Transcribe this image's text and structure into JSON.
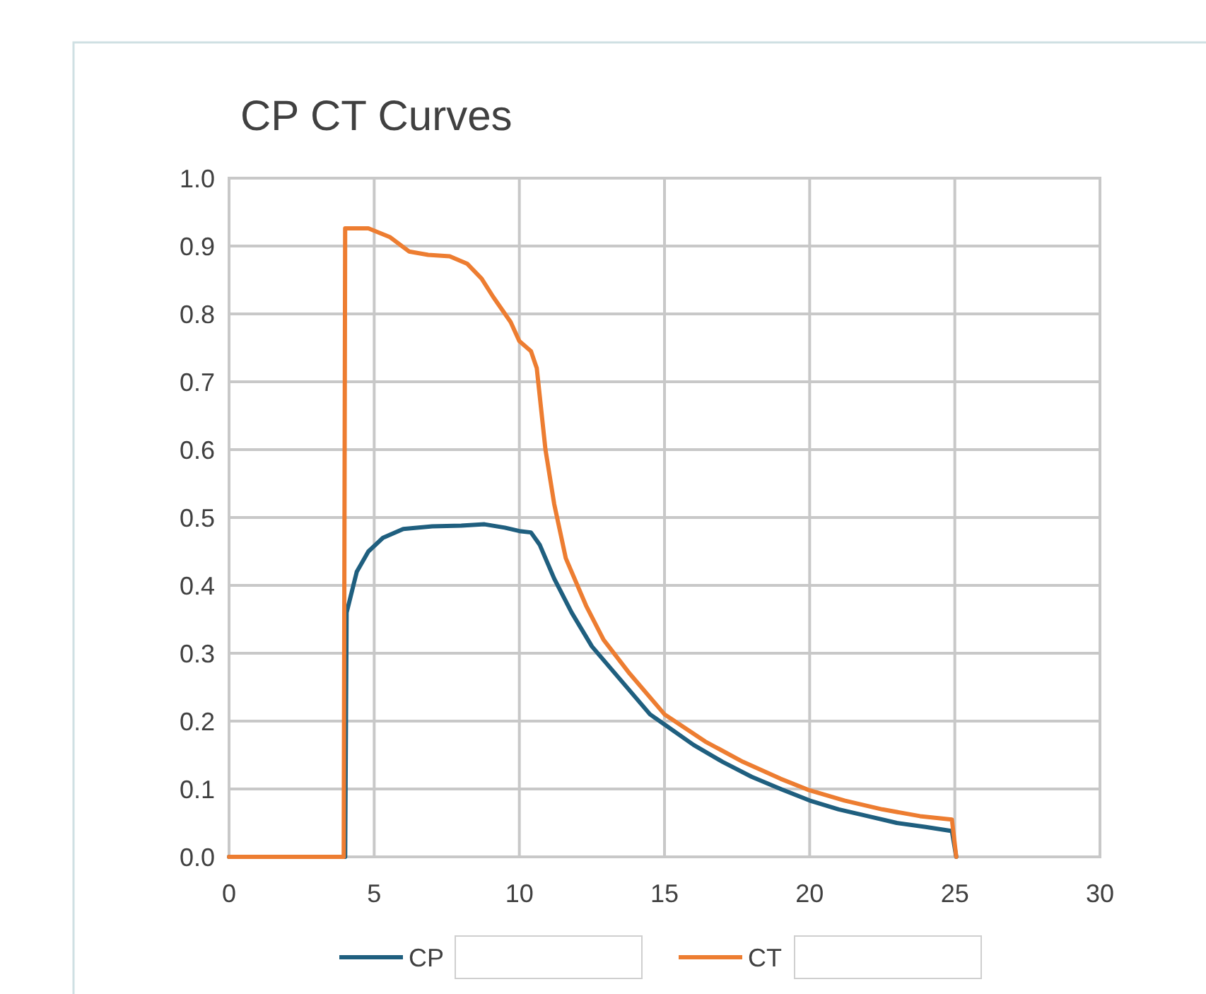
{
  "chart_data": {
    "type": "line",
    "title": "CP CT Curves",
    "xlim": [
      0,
      30
    ],
    "xticks": [
      0,
      5,
      10,
      15,
      20,
      25,
      30
    ],
    "ylim": [
      0,
      1
    ],
    "yticks": [
      {
        "value": 0,
        "label": "0.0"
      },
      {
        "value": 0.1,
        "label": "0.1"
      },
      {
        "value": 0.2,
        "label": "0.2"
      },
      {
        "value": 0.3,
        "label": "0.3"
      },
      {
        "value": 0.4,
        "label": "0.4"
      },
      {
        "value": 0.5,
        "label": "0.5"
      },
      {
        "value": 0.6,
        "label": "0.6"
      },
      {
        "value": 0.7,
        "label": "0.7"
      },
      {
        "value": 0.8,
        "label": "0.8"
      },
      {
        "value": 0.9,
        "label": "0.9"
      },
      {
        "value": 1,
        "label": "1.0"
      }
    ],
    "grid": true,
    "legend": "bottom",
    "marker": "none",
    "series": [
      {
        "name": "CP",
        "color": "#1f5f7f",
        "x": [
          0,
          4,
          4.05,
          4.4,
          4.8,
          5.3,
          6,
          7,
          8,
          8.8,
          9.5,
          10,
          10.4,
          10.7,
          11.2,
          11.8,
          12.5,
          13.5,
          14.5,
          15,
          16,
          17,
          18,
          19,
          20,
          21,
          22,
          23,
          24,
          24.9,
          25.05
        ],
        "values": [
          0,
          0,
          0.36,
          0.42,
          0.45,
          0.47,
          0.483,
          0.487,
          0.488,
          0.49,
          0.485,
          0.48,
          0.478,
          0.46,
          0.41,
          0.36,
          0.31,
          0.26,
          0.21,
          0.195,
          0.165,
          0.14,
          0.118,
          0.1,
          0.083,
          0.07,
          0.06,
          0.05,
          0.044,
          0.038,
          0
        ]
      },
      {
        "name": "CT",
        "color": "#ed7d31",
        "x": [
          0,
          3.95,
          4,
          4.8,
          5.55,
          6.2,
          6.86,
          7.6,
          8.2,
          8.7,
          9.1,
          9.7,
          10,
          10.4,
          10.6,
          10.9,
          11.2,
          11.6,
          12.3,
          12.9,
          13.8,
          15,
          16.4,
          17.7,
          19,
          20,
          21.2,
          22.5,
          23.8,
          24.9,
          25.05
        ],
        "values": [
          0,
          0,
          0.926,
          0.926,
          0.913,
          0.892,
          0.887,
          0.885,
          0.874,
          0.852,
          0.825,
          0.788,
          0.76,
          0.745,
          0.72,
          0.6,
          0.52,
          0.44,
          0.37,
          0.32,
          0.27,
          0.21,
          0.17,
          0.14,
          0.115,
          0.098,
          0.083,
          0.07,
          0.06,
          0.055,
          0
        ]
      }
    ]
  }
}
